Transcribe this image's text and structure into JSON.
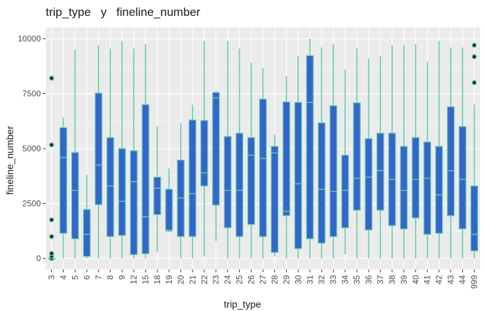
{
  "chart_data": {
    "type": "box",
    "title": "trip_type   y   fineline_number",
    "xlabel": "trip_type",
    "ylabel": "fineline_number",
    "ylim": [
      -500,
      10500
    ],
    "yticks": [
      0,
      2500,
      5000,
      7500,
      10000
    ],
    "ytick_labels": [
      "0",
      "2500",
      "5000",
      "7500",
      "10000"
    ],
    "grid": true,
    "colors": {
      "panel": "#ebebeb",
      "grid_major": "#ffffff",
      "box_fill": "#3366cc",
      "box_line": "#66cdaa",
      "outlier_fill": "#1a1a1a",
      "outlier_edge": "#66cdaa"
    },
    "categories": [
      "3",
      "4",
      "5",
      "6",
      "7",
      "8",
      "9",
      "12",
      "15",
      "18",
      "19",
      "20",
      "21",
      "22",
      "23",
      "24",
      "25",
      "26",
      "27",
      "28",
      "29",
      "30",
      "31",
      "32",
      "33",
      "34",
      "35",
      "36",
      "37",
      "38",
      "39",
      "40",
      "41",
      "42",
      "43",
      "44",
      "999"
    ],
    "boxes": [
      {
        "min": 0,
        "q1": 0,
        "median": 0,
        "q3": 0,
        "max": 0,
        "outliers": [
          0,
          100,
          230,
          1000,
          1760,
          5170,
          8200
        ]
      },
      {
        "min": 0,
        "q1": 1150,
        "median": 4600,
        "q3": 5950,
        "max": 6400,
        "outliers": []
      },
      {
        "min": 0,
        "q1": 900,
        "median": 3100,
        "q3": 4820,
        "max": 9500,
        "outliers": []
      },
      {
        "min": 0,
        "q1": 100,
        "median": 1100,
        "q3": 2230,
        "max": 3800,
        "outliers": []
      },
      {
        "min": 0,
        "q1": 2450,
        "median": 4250,
        "q3": 7520,
        "max": 9700,
        "outliers": []
      },
      {
        "min": 0,
        "q1": 1000,
        "median": 3300,
        "q3": 5500,
        "max": 9550,
        "outliers": []
      },
      {
        "min": 0,
        "q1": 1050,
        "median": 2600,
        "q3": 5000,
        "max": 9900,
        "outliers": []
      },
      {
        "min": 0,
        "q1": 180,
        "median": 3500,
        "q3": 4900,
        "max": 9550,
        "outliers": []
      },
      {
        "min": 0,
        "q1": 220,
        "median": 1900,
        "q3": 7000,
        "max": 9750,
        "outliers": []
      },
      {
        "min": 300,
        "q1": 2000,
        "median": 3200,
        "q3": 3700,
        "max": 6000,
        "outliers": []
      },
      {
        "min": 1200,
        "q1": 1250,
        "median": 1300,
        "q3": 3150,
        "max": 4100,
        "outliers": []
      },
      {
        "min": 0,
        "q1": 1000,
        "median": 2750,
        "q3": 4480,
        "max": 6150,
        "outliers": []
      },
      {
        "min": 0,
        "q1": 1000,
        "median": 2950,
        "q3": 6300,
        "max": 7000,
        "outliers": []
      },
      {
        "min": 100,
        "q1": 3300,
        "median": 3900,
        "q3": 6280,
        "max": 9900,
        "outliers": []
      },
      {
        "min": 800,
        "q1": 2430,
        "median": 7300,
        "q3": 7550,
        "max": 7620,
        "outliers": []
      },
      {
        "min": 0,
        "q1": 1400,
        "median": 3100,
        "q3": 5550,
        "max": 9900,
        "outliers": []
      },
      {
        "min": 0,
        "q1": 1000,
        "median": 3100,
        "q3": 5700,
        "max": 9550,
        "outliers": []
      },
      {
        "min": 0,
        "q1": 1550,
        "median": 4700,
        "q3": 5500,
        "max": 8900,
        "outliers": []
      },
      {
        "min": 0,
        "q1": 1000,
        "median": 4550,
        "q3": 7250,
        "max": 8650,
        "outliers": []
      },
      {
        "min": 100,
        "q1": 280,
        "median": 4800,
        "q3": 5100,
        "max": 5620,
        "outliers": []
      },
      {
        "min": 0,
        "q1": 1950,
        "median": 2150,
        "q3": 7120,
        "max": 8280,
        "outliers": []
      },
      {
        "min": 0,
        "q1": 450,
        "median": 3400,
        "q3": 7100,
        "max": 9200,
        "outliers": []
      },
      {
        "min": 0,
        "q1": 900,
        "median": 7100,
        "q3": 9230,
        "max": 10000,
        "outliers": []
      },
      {
        "min": 0,
        "q1": 700,
        "median": 3150,
        "q3": 6170,
        "max": 9600,
        "outliers": []
      },
      {
        "min": 0,
        "q1": 1000,
        "median": 3050,
        "q3": 6950,
        "max": 9750,
        "outliers": []
      },
      {
        "min": 200,
        "q1": 1400,
        "median": 3100,
        "q3": 4700,
        "max": 8580,
        "outliers": []
      },
      {
        "min": 0,
        "q1": 2200,
        "median": 3650,
        "q3": 7080,
        "max": 9550,
        "outliers": []
      },
      {
        "min": 0,
        "q1": 1300,
        "median": 3700,
        "q3": 5450,
        "max": 9100,
        "outliers": []
      },
      {
        "min": 0,
        "q1": 2200,
        "median": 4000,
        "q3": 5700,
        "max": 9200,
        "outliers": []
      },
      {
        "min": 0,
        "q1": 1500,
        "median": 3600,
        "q3": 5700,
        "max": 9700,
        "outliers": []
      },
      {
        "min": 0,
        "q1": 1350,
        "median": 3100,
        "q3": 5100,
        "max": 9700,
        "outliers": []
      },
      {
        "min": 0,
        "q1": 1850,
        "median": 3600,
        "q3": 5500,
        "max": 9750,
        "outliers": []
      },
      {
        "min": 0,
        "q1": 1100,
        "median": 3650,
        "q3": 5300,
        "max": 8950,
        "outliers": []
      },
      {
        "min": 0,
        "q1": 1150,
        "median": 2900,
        "q3": 5100,
        "max": 9900,
        "outliers": []
      },
      {
        "min": 0,
        "q1": 1950,
        "median": 4000,
        "q3": 6900,
        "max": 9600,
        "outliers": []
      },
      {
        "min": 0,
        "q1": 1350,
        "median": 3600,
        "q3": 6000,
        "max": 9600,
        "outliers": []
      },
      {
        "min": 0,
        "q1": 350,
        "median": 1100,
        "q3": 3300,
        "max": 7000,
        "outliers": [
          8000,
          9180,
          9700
        ]
      }
    ]
  }
}
